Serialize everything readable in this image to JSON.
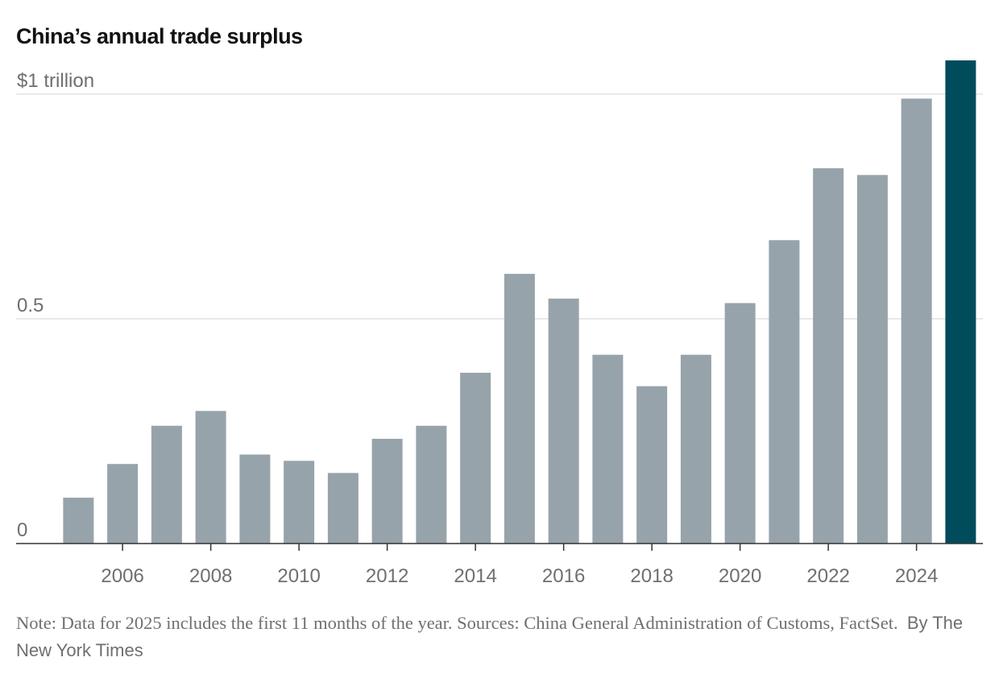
{
  "chart_data": {
    "type": "bar",
    "title": "China’s annual trade surplus",
    "xlabel": "",
    "ylabel": "",
    "categories": [
      "2005",
      "2006",
      "2007",
      "2008",
      "2009",
      "2010",
      "2011",
      "2012",
      "2013",
      "2014",
      "2015",
      "2016",
      "2017",
      "2018",
      "2019",
      "2020",
      "2021",
      "2022",
      "2023",
      "2024",
      "2025"
    ],
    "values": [
      0.102,
      0.177,
      0.262,
      0.295,
      0.198,
      0.184,
      0.157,
      0.233,
      0.262,
      0.38,
      0.6,
      0.545,
      0.42,
      0.35,
      0.42,
      0.535,
      0.675,
      0.835,
      0.82,
      0.99,
      1.075
    ],
    "ylim": [
      0,
      1.075
    ],
    "y_ticks": [
      0,
      0.5,
      1
    ],
    "y_tick_labels": [
      "0",
      "0.5",
      "$1 trillion"
    ],
    "x_tick_labels": [
      "2006",
      "2008",
      "2010",
      "2012",
      "2014",
      "2016",
      "2018",
      "2020",
      "2022",
      "2024"
    ],
    "highlight_category": "2025",
    "colors": {
      "bar": "#97a3aa",
      "highlight": "#004c5c",
      "grid": "#e2e2e2",
      "axis": "#333333",
      "text": "#6f6f6f"
    },
    "grid": true
  },
  "footer": {
    "note": "Note: Data for 2025 includes the first 11 months of the year.  Sources: China General Administration of Customs, FactSet.",
    "byline": "By The New York Times"
  }
}
